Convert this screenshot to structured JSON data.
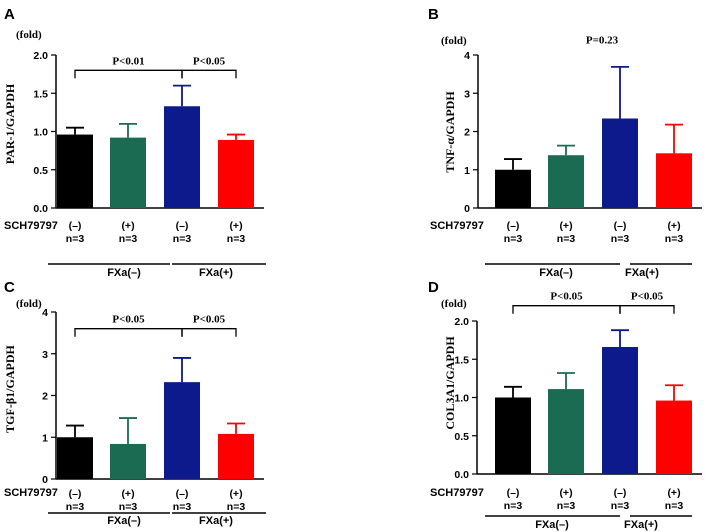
{
  "figure": {
    "treatment_label": "SCH79797",
    "fold_label": "(fold)",
    "group_labels": [
      "FXa(–)",
      "FXa(+)"
    ],
    "tick_labels": [
      "(–)\nn=3",
      "(+)\nn=3",
      "(–)\nn=3",
      "(+)\nn=3"
    ],
    "bar_colors": [
      "#000000",
      "#1a6b52",
      "#0d1a8c",
      "#ff0000"
    ]
  },
  "chart_data": [
    {
      "type": "bar",
      "panel": "A",
      "fold_label": "(fold)",
      "ylabel": "PAR-1/GAPDH",
      "ylim": [
        0,
        2.0
      ],
      "yticks": [
        "0.0",
        "0.5",
        "1.0",
        "1.5",
        "2.0"
      ],
      "categories": [
        "FXa(–) SCH79797(–)",
        "FXa(–) SCH79797(+)",
        "FXa(+) SCH79797(–)",
        "FXa(+) SCH79797(+)"
      ],
      "values": [
        0.96,
        0.92,
        1.33,
        0.89
      ],
      "errors": [
        0.09,
        0.18,
        0.27,
        0.07
      ],
      "annotations": [
        {
          "text": "P<0.01",
          "from": 0,
          "to": 2,
          "level": 1.8
        },
        {
          "text": "P<0.05",
          "from": 2,
          "to": 3,
          "level": 1.8
        }
      ]
    },
    {
      "type": "bar",
      "panel": "B",
      "fold_label": "(fold)",
      "ylabel": "TNF-α/GAPDH",
      "ylim": [
        0,
        4
      ],
      "yticks": [
        "0",
        "1",
        "2",
        "3",
        "4"
      ],
      "categories": [
        "FXa(–) SCH79797(–)",
        "FXa(–) SCH79797(+)",
        "FXa(+) SCH79797(–)",
        "FXa(+) SCH79797(+)"
      ],
      "values": [
        1.0,
        1.38,
        2.34,
        1.43
      ],
      "errors": [
        0.28,
        0.25,
        1.35,
        0.75
      ],
      "annotations": [
        {
          "text": "P=0.23",
          "center": 2,
          "level": 4.3
        }
      ]
    },
    {
      "type": "bar",
      "panel": "C",
      "fold_label": "(fold)",
      "ylabel": "TGF-β1/GAPDH",
      "ylim": [
        0,
        4
      ],
      "yticks": [
        "0",
        "1",
        "2",
        "3",
        "4"
      ],
      "categories": [
        "FXa(–) SCH79797(–)",
        "FXa(–) SCH79797(+)",
        "FXa(+) SCH79797(–)",
        "FXa(+) SCH79797(+)"
      ],
      "values": [
        1.0,
        0.84,
        2.32,
        1.08
      ],
      "errors": [
        0.28,
        0.62,
        0.58,
        0.25
      ],
      "annotations": [
        {
          "text": "P<0.05",
          "from": 0,
          "to": 2,
          "level": 3.6
        },
        {
          "text": "P<0.05",
          "from": 2,
          "to": 3,
          "level": 3.6
        }
      ]
    },
    {
      "type": "bar",
      "panel": "D",
      "fold_label": "(fold)",
      "ylabel": "COL3A1/GAPDH",
      "ylim": [
        0,
        2.0
      ],
      "yticks": [
        "0.0",
        "0.5",
        "1.0",
        "1.5",
        "2.0"
      ],
      "categories": [
        "FXa(–) SCH79797(–)",
        "FXa(–) SCH79797(+)",
        "FXa(+) SCH79797(–)",
        "FXa(+) SCH79797(+)"
      ],
      "values": [
        1.0,
        1.11,
        1.66,
        0.96
      ],
      "errors": [
        0.14,
        0.21,
        0.22,
        0.2
      ],
      "annotations": [
        {
          "text": "P<0.05",
          "from": 0,
          "to": 2,
          "level": 2.2
        },
        {
          "text": "P<0.05",
          "from": 2,
          "to": 3,
          "level": 2.2
        }
      ]
    }
  ]
}
